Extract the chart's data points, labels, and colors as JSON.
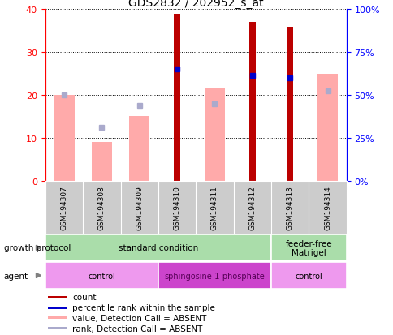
{
  "title": "GDS2832 / 202952_s_at",
  "samples": [
    "GSM194307",
    "GSM194308",
    "GSM194309",
    "GSM194310",
    "GSM194311",
    "GSM194312",
    "GSM194313",
    "GSM194314"
  ],
  "count": [
    null,
    null,
    null,
    39,
    null,
    37,
    36,
    null
  ],
  "percentile_rank": [
    null,
    null,
    null,
    26,
    null,
    24.5,
    24,
    null
  ],
  "value_absent": [
    20,
    9,
    15,
    null,
    21.5,
    null,
    null,
    25
  ],
  "rank_absent": [
    20,
    12.5,
    17.5,
    null,
    18,
    null,
    null,
    21
  ],
  "ylim_left": [
    0,
    40
  ],
  "ylim_right": [
    0,
    100
  ],
  "yticks_left": [
    0,
    10,
    20,
    30,
    40
  ],
  "yticks_right": [
    0,
    25,
    50,
    75,
    100
  ],
  "ytick_labels_right": [
    "0%",
    "25%",
    "50%",
    "75%",
    "100%"
  ],
  "color_count": "#bb0000",
  "color_rank": "#0000cc",
  "color_value_absent": "#ffaaaa",
  "color_rank_absent": "#aaaacc",
  "color_bg": "#ffffff",
  "gp_spans": [
    {
      "start": 0,
      "end": 6,
      "label": "standard condition",
      "color": "#aaddaa"
    },
    {
      "start": 6,
      "end": 8,
      "label": "feeder-free\nMatrigel",
      "color": "#aaddaa"
    }
  ],
  "agent_spans": [
    {
      "start": 0,
      "end": 3,
      "label": "control",
      "color": "#ee99ee"
    },
    {
      "start": 3,
      "end": 6,
      "label": "sphingosine-1-phosphate",
      "color": "#cc44cc"
    },
    {
      "start": 6,
      "end": 8,
      "label": "control",
      "color": "#ee99ee"
    }
  ],
  "legend_items": [
    {
      "label": "count",
      "color": "#bb0000"
    },
    {
      "label": "percentile rank within the sample",
      "color": "#0000cc"
    },
    {
      "label": "value, Detection Call = ABSENT",
      "color": "#ffaaaa"
    },
    {
      "label": "rank, Detection Call = ABSENT",
      "color": "#aaaacc"
    }
  ],
  "count_bar_width": 0.18,
  "absent_bar_width": 0.55
}
